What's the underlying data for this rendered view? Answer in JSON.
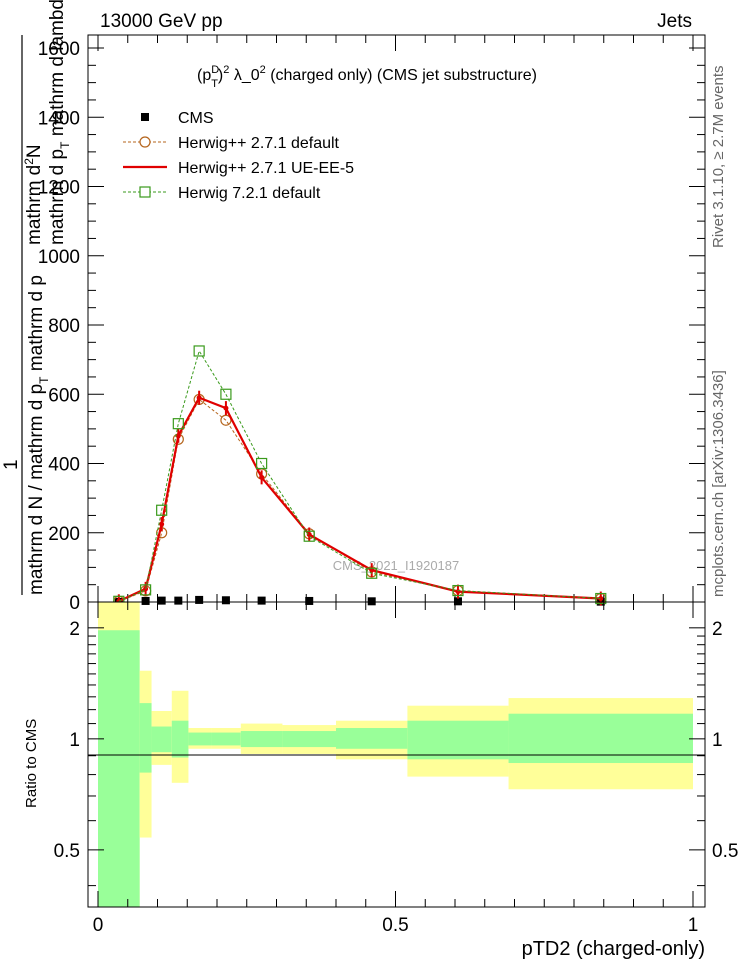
{
  "header": {
    "left": "13000 GeV pp",
    "right": "Jets"
  },
  "side_labels": {
    "rivet": "Rivet 3.1.10, ≥ 2.7M events",
    "mcplots": "mcplots.cern.ch [arXiv:1306.3436]"
  },
  "watermark": "CMS_2021_I1920187",
  "chart_data": [
    {
      "type": "line",
      "title_parts": {
        "p": "(p",
        "sup_d": "D",
        "sub_t": "T",
        "close": ")",
        "sup_2": "2",
        "rest": " λ_0",
        "sup_0": "2",
        "tail": " (charged only) (CMS jet substructure)"
      },
      "ylabel": {
        "num_line1": "mathrm d",
        "num_sup": "2",
        "num_line1b": "N",
        "num_line2": "mathrm d p",
        "num_sub": "T",
        "num_line3": " mathrm d lambda",
        "one": "1",
        "den": "mathrm d N / mathrm d p",
        "den_sub": "T",
        "den2": " mathrm d p"
      },
      "xlabel": "",
      "xlim": [
        0,
        1
      ],
      "ylim": [
        0,
        1650
      ],
      "yticks": [
        "0",
        "200",
        "400",
        "600",
        "800",
        "1000",
        "1200",
        "1400",
        "1600"
      ],
      "legend_position": "top-left",
      "series": [
        {
          "name": "CMS",
          "style": "marker",
          "color": "#000000",
          "points": [
            [
              0.035,
              0
            ],
            [
              0.08,
              3
            ],
            [
              0.107,
              4
            ],
            [
              0.135,
              4
            ],
            [
              0.17,
              6
            ],
            [
              0.215,
              5
            ],
            [
              0.275,
              4
            ],
            [
              0.355,
              3
            ],
            [
              0.46,
              2
            ],
            [
              0.605,
              2
            ],
            [
              0.845,
              1
            ]
          ]
        },
        {
          "name": "Herwig++ 2.7.1 default",
          "style": "dashed-circle",
          "color": "#b5651d",
          "points": [
            [
              0.035,
              2
            ],
            [
              0.08,
              32
            ],
            [
              0.107,
              200
            ],
            [
              0.135,
              470
            ],
            [
              0.17,
              585
            ],
            [
              0.215,
              525
            ],
            [
              0.275,
              370
            ],
            [
              0.355,
              197
            ],
            [
              0.46,
              87
            ],
            [
              0.605,
              33
            ],
            [
              0.845,
              10
            ]
          ]
        },
        {
          "name": "Herwig++ 2.7.1 UE-EE-5",
          "style": "solid",
          "color": "#e00000",
          "points": [
            [
              0.035,
              2
            ],
            [
              0.08,
              38
            ],
            [
              0.107,
              225
            ],
            [
              0.135,
              480
            ],
            [
              0.17,
              590
            ],
            [
              0.215,
              560
            ],
            [
              0.275,
              360
            ],
            [
              0.355,
              195
            ],
            [
              0.46,
              92
            ],
            [
              0.605,
              30
            ],
            [
              0.845,
              10
            ]
          ]
        },
        {
          "name": "Herwig 7.2.1 default",
          "style": "dashed-square",
          "color": "#3a9a1c",
          "points": [
            [
              0.035,
              2
            ],
            [
              0.08,
              35
            ],
            [
              0.107,
              265
            ],
            [
              0.135,
              515
            ],
            [
              0.17,
              725
            ],
            [
              0.215,
              600
            ],
            [
              0.275,
              400
            ],
            [
              0.355,
              190
            ],
            [
              0.46,
              83
            ],
            [
              0.605,
              33
            ],
            [
              0.845,
              10
            ]
          ]
        }
      ]
    },
    {
      "type": "area",
      "ylabel": "Ratio to CMS",
      "xlabel": "pTD2 (charged-only)",
      "xlim": [
        0,
        1
      ],
      "xticks": [
        "0",
        "0.5",
        "1"
      ],
      "ylim_log": [
        0.35,
        2.35
      ],
      "yticks": [
        "0.5",
        "1",
        "2"
      ],
      "reference_line": 1,
      "bands": [
        {
          "x0": 0.0,
          "x1": 0.07,
          "yellow": [
            0.35,
            2.35
          ],
          "green": [
            0.35,
            1.97
          ]
        },
        {
          "x0": 0.07,
          "x1": 0.09,
          "yellow": [
            0.54,
            1.53
          ],
          "green": [
            0.81,
            1.25
          ]
        },
        {
          "x0": 0.09,
          "x1": 0.124,
          "yellow": [
            0.85,
            1.19
          ],
          "green": [
            0.92,
            1.08
          ]
        },
        {
          "x0": 0.124,
          "x1": 0.152,
          "yellow": [
            0.76,
            1.35
          ],
          "green": [
            0.89,
            1.12
          ]
        },
        {
          "x0": 0.152,
          "x1": 0.19,
          "yellow": [
            0.94,
            1.07
          ],
          "green": [
            0.96,
            1.04
          ]
        },
        {
          "x0": 0.19,
          "x1": 0.24,
          "yellow": [
            0.94,
            1.07
          ],
          "green": [
            0.96,
            1.04
          ]
        },
        {
          "x0": 0.24,
          "x1": 0.31,
          "yellow": [
            0.91,
            1.1
          ],
          "green": [
            0.95,
            1.05
          ]
        },
        {
          "x0": 0.31,
          "x1": 0.4,
          "yellow": [
            0.91,
            1.09
          ],
          "green": [
            0.95,
            1.05
          ]
        },
        {
          "x0": 0.4,
          "x1": 0.52,
          "yellow": [
            0.88,
            1.12
          ],
          "green": [
            0.94,
            1.07
          ]
        },
        {
          "x0": 0.52,
          "x1": 0.69,
          "yellow": [
            0.79,
            1.23
          ],
          "green": [
            0.88,
            1.12
          ]
        },
        {
          "x0": 0.69,
          "x1": 1.0,
          "yellow": [
            0.73,
            1.29
          ],
          "green": [
            0.86,
            1.17
          ]
        }
      ]
    }
  ]
}
